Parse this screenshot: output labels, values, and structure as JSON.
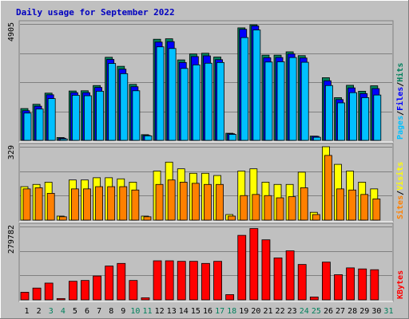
{
  "colors": {
    "background": "#C0C0C0",
    "hits": "#00805C",
    "files": "#0000FF",
    "pages": "#00C0FF",
    "visits": "#FFFF00",
    "sites": "#FF8000",
    "kbytes": "#FF0000",
    "weekend_day_label": "#00805C",
    "weekday_label": "#000000"
  },
  "chart_data": {
    "type": "bar",
    "title": "Daily usage for September 2022",
    "categories": [
      "1",
      "2",
      "3",
      "4",
      "5",
      "6",
      "7",
      "8",
      "9",
      "10",
      "11",
      "12",
      "13",
      "14",
      "15",
      "16",
      "17",
      "18",
      "19",
      "20",
      "21",
      "22",
      "23",
      "24",
      "25",
      "26",
      "27",
      "28",
      "29",
      "30",
      "31"
    ],
    "weekend_days": [
      "3",
      "4",
      "10",
      "11",
      "17",
      "18",
      "24",
      "25",
      "31"
    ],
    "panels": [
      {
        "name": "hits_files_pages",
        "ymax_label": "4905",
        "ymax": 4905,
        "legend": [
          {
            "text": "Hits",
            "color": "#00805C"
          },
          {
            "text": "/",
            "color": "#000000"
          },
          {
            "text": "Files",
            "color": "#0000FF"
          },
          {
            "text": "/",
            "color": "#000000"
          },
          {
            "text": "Pages",
            "color": "#00C0FF"
          }
        ],
        "series": [
          {
            "name": "Hits",
            "color": "#00805C",
            "values": [
              1340,
              1520,
              1990,
              120,
              2080,
              2090,
              2310,
              3500,
              3120,
              2360,
              240,
              4260,
              4280,
              3390,
              3640,
              3670,
              3510,
              300,
              4740,
              4870,
              3590,
              3590,
              3730,
              3570,
              180,
              2640,
              1800,
              2320,
              2070,
              2300,
              0
            ]
          },
          {
            "name": "Files",
            "color": "#0000FF",
            "values": [
              1250,
              1440,
              1920,
              90,
              2010,
              2010,
              2230,
              3410,
              3000,
              2260,
              210,
              4140,
              4160,
              3280,
              3530,
              3560,
              3400,
              280,
              4680,
              4820,
              3480,
              3490,
              3640,
              3470,
              170,
              2510,
              1720,
              2210,
              1970,
              2180,
              0
            ]
          },
          {
            "name": "Pages",
            "color": "#00C0FF",
            "values": [
              1150,
              1320,
              1760,
              60,
              1900,
              1880,
              2070,
              3240,
              2810,
              2090,
              190,
              3940,
              3870,
              3030,
              3180,
              3250,
              3280,
              250,
              4330,
              4650,
              3300,
              3310,
              3490,
              3290,
              130,
              2310,
              1580,
              2010,
              1800,
              1910,
              0
            ]
          }
        ]
      },
      {
        "name": "visits_sites",
        "ymax_label": "329",
        "ymax": 329,
        "legend": [
          {
            "text": "Visits",
            "color": "#FFFF00"
          },
          {
            "text": "/",
            "color": "#000000"
          },
          {
            "text": "Sites",
            "color": "#FF8000"
          }
        ],
        "series": [
          {
            "name": "Visits",
            "color": "#FFFF00",
            "values": [
              150,
              160,
              170,
              18,
              180,
              180,
              190,
              190,
              185,
              170,
              18,
              220,
              260,
              230,
              210,
              210,
              200,
              25,
              220,
              230,
              170,
              160,
              160,
              215,
              35,
              329,
              250,
              220,
              170,
              140,
              0
            ]
          },
          {
            "name": "Sites",
            "color": "#FF8000",
            "values": [
              140,
              145,
              120,
              15,
              140,
              140,
              150,
              150,
              150,
              135,
              15,
              160,
              180,
              170,
              165,
              160,
              160,
              18,
              110,
              115,
              110,
              100,
              105,
              145,
              25,
              290,
              140,
              135,
              115,
              95,
              0
            ]
          }
        ]
      },
      {
        "name": "kbytes",
        "ymax_label": "279782",
        "ymax": 279782,
        "legend": [
          {
            "text": "KBytes",
            "color": "#FF0000"
          }
        ],
        "series": [
          {
            "name": "KBytes",
            "color": "#FF0000",
            "values": [
              29000,
              45000,
              64000,
              5000,
              71000,
              74000,
              91000,
              129000,
              139000,
              74000,
              8000,
              149000,
              149000,
              147000,
              147000,
              139000,
              147000,
              20000,
              246000,
              272000,
              229000,
              160000,
              187000,
              135000,
              11000,
              144000,
              96000,
              122000,
              118000,
              115000,
              0
            ]
          }
        ]
      }
    ]
  }
}
